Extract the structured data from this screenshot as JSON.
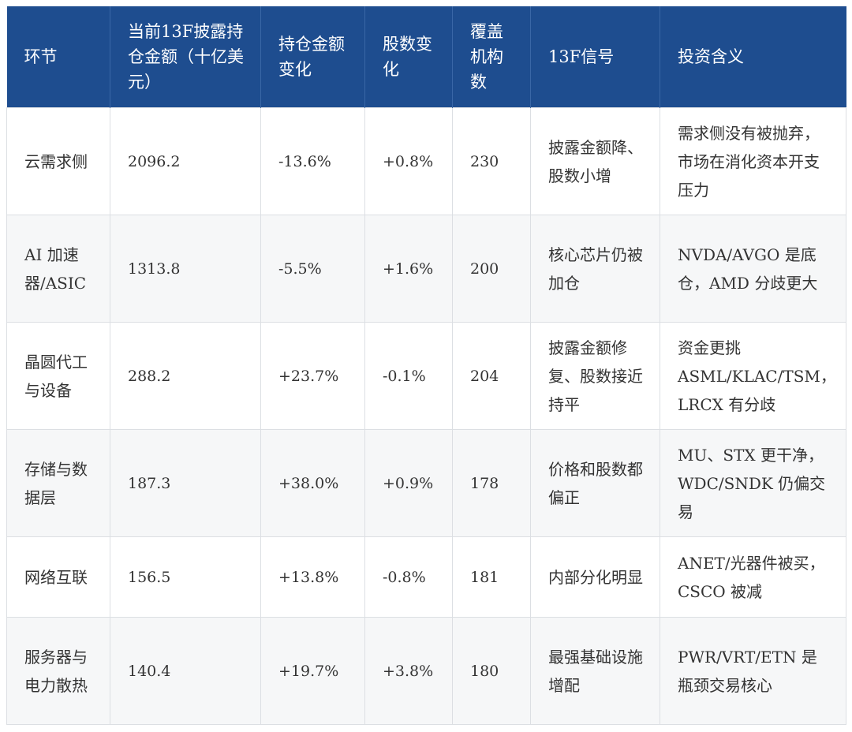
{
  "table": {
    "headers": [
      "环节",
      "当前13F披露持仓金额（十亿美元）",
      "持仓金额变化",
      "股数变化",
      "覆盖机构数",
      "13F信号",
      "投资含义"
    ],
    "rows": [
      [
        "云需求侧",
        "2096.2",
        "-13.6%",
        "+0.8%",
        "230",
        "披露金额降、股数小增",
        "需求侧没有被抛弃，市场在消化资本开支压力"
      ],
      [
        "AI 加速器/ASIC",
        "1313.8",
        "-5.5%",
        "+1.6%",
        "200",
        "核心芯片仍被加仓",
        "NVDA/AVGO 是底仓，AMD 分歧更大"
      ],
      [
        "晶圆代工与设备",
        "288.2",
        "+23.7%",
        "-0.1%",
        "204",
        "披露金额修复、股数接近持平",
        "资金更挑 ASML/KLAC/TSM，LRCX 有分歧"
      ],
      [
        "存储与数据层",
        "187.3",
        "+38.0%",
        "+0.9%",
        "178",
        "价格和股数都偏正",
        "MU、STX 更干净，WDC/SNDK 仍偏交易"
      ],
      [
        "网络互联",
        "156.5",
        "+13.8%",
        "-0.8%",
        "181",
        "内部分化明显",
        "ANET/光器件被买，CSCO 被减"
      ],
      [
        "服务器与电力散热",
        "140.4",
        "+19.7%",
        "+3.8%",
        "180",
        "最强基础设施增配",
        "PWR/VRT/ETN 是瓶颈交易核心"
      ]
    ]
  },
  "colors": {
    "header_bg": "#1e4d8f",
    "header_text": "#ffffff",
    "row_alt_bg": "#f6f7f8",
    "border": "#dcdfe3"
  }
}
